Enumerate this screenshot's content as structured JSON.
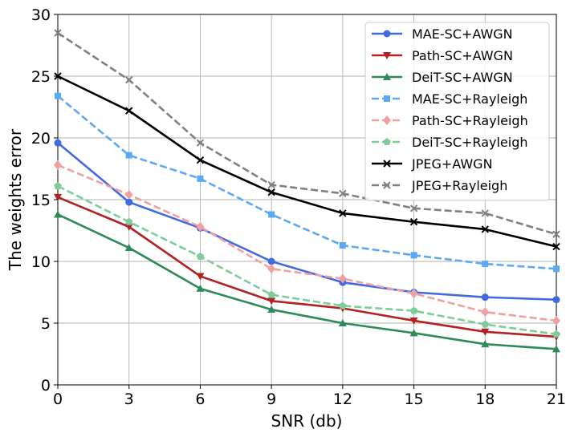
{
  "chart_data": {
    "type": "line",
    "title": "",
    "xlabel": "SNR (db)",
    "ylabel": "The weights error",
    "x": [
      0,
      3,
      6,
      9,
      12,
      15,
      18,
      21
    ],
    "xlim": [
      0,
      21
    ],
    "ylim": [
      0,
      30
    ],
    "xticks": [
      0,
      3,
      6,
      9,
      12,
      15,
      18,
      21
    ],
    "yticks": [
      0,
      5,
      10,
      15,
      20,
      25,
      30
    ],
    "grid": true,
    "legend_position": "top-right",
    "series": [
      {
        "name": "MAE-SC+AWGN",
        "color": "#4169e1",
        "dash": "solid",
        "marker": "circle",
        "values": [
          19.6,
          14.8,
          12.7,
          10.0,
          8.3,
          7.5,
          7.1,
          6.9
        ]
      },
      {
        "name": "Path-SC+AWGN",
        "color": "#b22222",
        "dash": "solid",
        "marker": "triangle-down",
        "values": [
          15.2,
          12.8,
          8.8,
          6.8,
          6.2,
          5.2,
          4.3,
          3.9
        ]
      },
      {
        "name": "DeiT-SC+AWGN",
        "color": "#2e8b57",
        "dash": "solid",
        "marker": "triangle-up",
        "values": [
          13.8,
          11.1,
          7.8,
          6.1,
          5.0,
          4.2,
          3.3,
          2.9
        ]
      },
      {
        "name": "MAE-SC+Rayleigh",
        "color": "#5aa9f5",
        "dash": "dashed",
        "marker": "square",
        "values": [
          23.4,
          18.6,
          16.7,
          13.8,
          11.3,
          10.5,
          9.8,
          9.4
        ]
      },
      {
        "name": "Path-SC+Rayleigh",
        "color": "#f0a0a0",
        "dash": "dashed",
        "marker": "diamond",
        "values": [
          17.8,
          15.4,
          12.8,
          9.4,
          8.6,
          7.4,
          5.9,
          5.2
        ]
      },
      {
        "name": "DeiT-SC+Rayleigh",
        "color": "#7ccd98",
        "dash": "dashed",
        "marker": "pentagon",
        "values": [
          16.1,
          13.2,
          10.4,
          7.3,
          6.4,
          6.0,
          4.9,
          4.1
        ]
      },
      {
        "name": "JPEG+AWGN",
        "color": "#000000",
        "dash": "solid",
        "marker": "x",
        "values": [
          25.0,
          22.2,
          18.2,
          15.6,
          13.9,
          13.2,
          12.6,
          11.2
        ]
      },
      {
        "name": "JPEG+Rayleigh",
        "color": "#808080",
        "dash": "dashed",
        "marker": "x",
        "values": [
          28.5,
          24.7,
          19.6,
          16.2,
          15.5,
          14.3,
          13.9,
          12.2
        ]
      }
    ]
  }
}
